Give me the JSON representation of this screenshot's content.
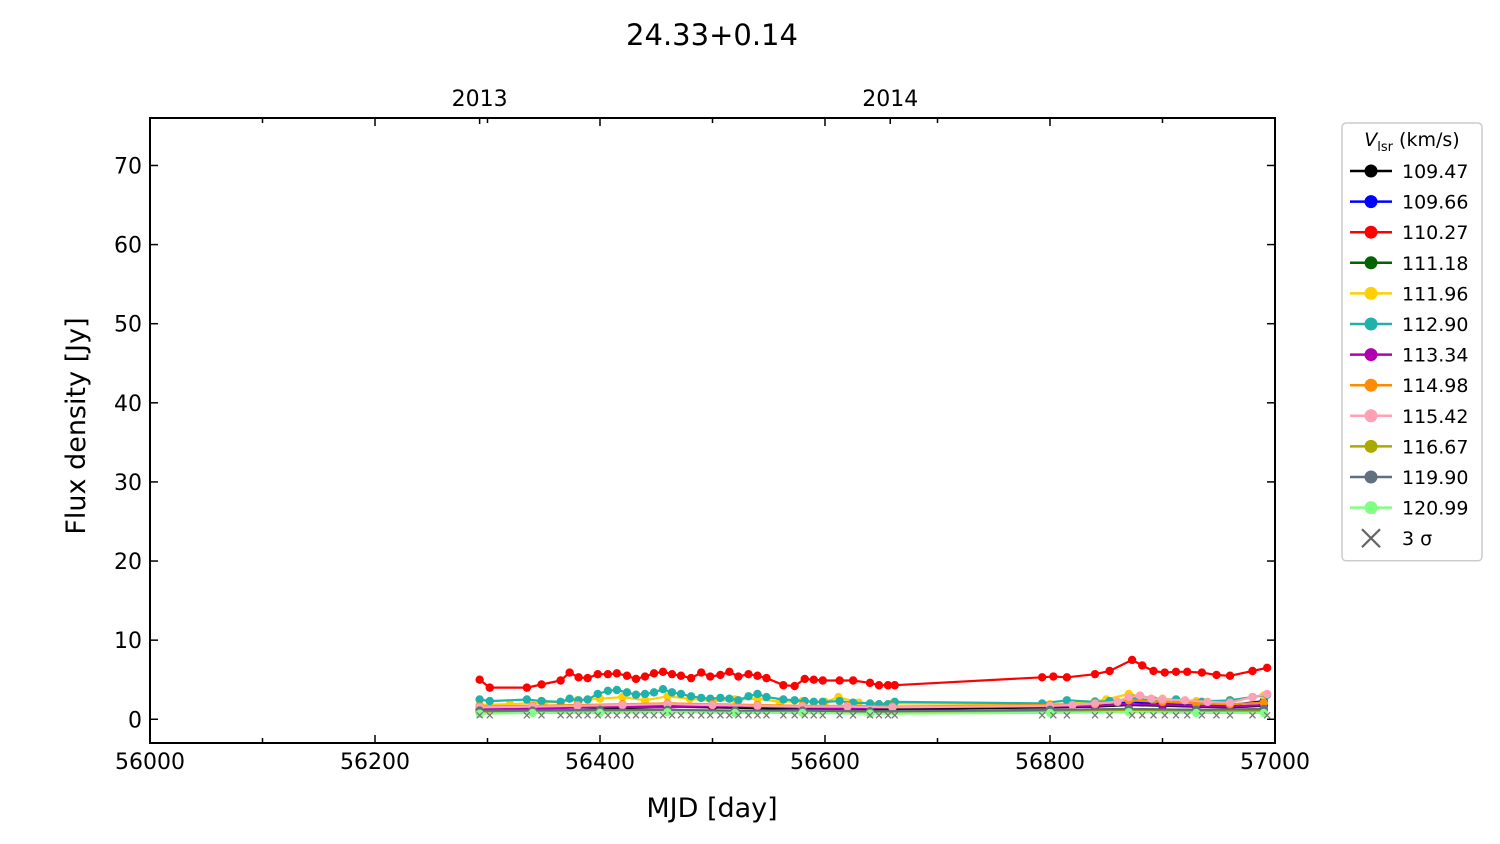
{
  "chart_data": {
    "type": "line",
    "title": "24.33+0.14",
    "xlabel": "MJD [day]",
    "ylabel": "Flux density [Jy]",
    "xlim": [
      56000,
      57000
    ],
    "ylim": [
      -3,
      76
    ],
    "x_ticks": [
      56000,
      56200,
      56400,
      56600,
      56800,
      57000
    ],
    "y_ticks": [
      0,
      10,
      20,
      30,
      40,
      50,
      60,
      70
    ],
    "top_axis": {
      "ticks": [
        {
          "label": "2013",
          "x": 56293
        },
        {
          "label": "2014",
          "x": 56658
        }
      ]
    },
    "grid": false,
    "legend": {
      "placement": "outside-right-top",
      "title_italic": "V",
      "title_sub": "lsr",
      "title_rest": " (km/s)",
      "sigma_label": "3 σ"
    },
    "series": [
      {
        "name": "109.47",
        "color": "#000000",
        "x": [
          56293,
          56300,
          56340,
          56380,
          56420,
          56460,
          56500,
          56540,
          56580,
          56620,
          56660,
          56800,
          56840,
          56870,
          56900,
          56930,
          56960,
          56990
        ],
        "y": [
          1.2,
          1.3,
          1.4,
          1.5,
          1.4,
          1.6,
          1.5,
          1.4,
          1.3,
          1.4,
          1.3,
          1.5,
          1.6,
          1.8,
          1.7,
          1.6,
          1.5,
          1.7
        ]
      },
      {
        "name": "109.66",
        "color": "#0000ff",
        "x": [
          56293,
          56300,
          56340,
          56380,
          56420,
          56460,
          56500,
          56540,
          56580,
          56620,
          56660,
          56800,
          56840,
          56870,
          56900,
          56930,
          56960,
          56990
        ],
        "y": [
          1.3,
          1.4,
          1.5,
          1.6,
          1.7,
          1.8,
          1.7,
          1.6,
          1.5,
          1.6,
          1.5,
          1.8,
          1.9,
          2.2,
          2.0,
          1.9,
          1.8,
          2.3
        ]
      },
      {
        "name": "110.27",
        "color": "#ff0000",
        "x": [
          56293,
          56302,
          56335,
          56348,
          56365,
          56373,
          56381,
          56389,
          56398,
          56407,
          56415,
          56424,
          56432,
          56440,
          56448,
          56456,
          56464,
          56472,
          56481,
          56490,
          56498,
          56507,
          56515,
          56523,
          56532,
          56540,
          56548,
          56563,
          56573,
          56582,
          56590,
          56598,
          56613,
          56625,
          56640,
          56648,
          56656,
          56662,
          56793,
          56803,
          56815,
          56840,
          56853,
          56873,
          56882,
          56892,
          56902,
          56912,
          56922,
          56935,
          56948,
          56960,
          56980,
          56993
        ],
        "y": [
          5.0,
          4.0,
          4.0,
          4.4,
          4.9,
          5.9,
          5.3,
          5.2,
          5.7,
          5.7,
          5.8,
          5.5,
          5.1,
          5.4,
          5.8,
          6.0,
          5.7,
          5.5,
          5.2,
          5.9,
          5.4,
          5.6,
          6.0,
          5.4,
          5.7,
          5.5,
          5.2,
          4.3,
          4.2,
          5.1,
          5.0,
          4.9,
          4.9,
          4.9,
          4.6,
          4.3,
          4.3,
          4.3,
          5.3,
          5.4,
          5.3,
          5.7,
          6.1,
          7.5,
          6.8,
          6.1,
          5.9,
          6.0,
          6.0,
          5.9,
          5.6,
          5.5,
          6.1,
          6.5
        ]
      },
      {
        "name": "111.18",
        "color": "#006400",
        "x": [
          56293,
          56340,
          56400,
          56460,
          56520,
          56580,
          56640,
          56800,
          56870,
          56930,
          56990
        ],
        "y": [
          1.0,
          1.1,
          1.2,
          1.1,
          1.0,
          1.2,
          1.1,
          1.1,
          1.3,
          1.2,
          1.2
        ]
      },
      {
        "name": "111.96",
        "color": "#ffd000",
        "x": [
          56293,
          56320,
          56350,
          56380,
          56400,
          56420,
          56440,
          56460,
          56480,
          56500,
          56520,
          56540,
          56560,
          56580,
          56600,
          56612,
          56630,
          56660,
          56800,
          56820,
          56840,
          56850,
          56870,
          56880,
          56900,
          56930,
          56960,
          56990
        ],
        "y": [
          1.8,
          1.9,
          2.1,
          2.4,
          2.6,
          2.8,
          2.4,
          2.9,
          2.6,
          2.3,
          2.5,
          2.6,
          2.2,
          2.3,
          2.2,
          2.8,
          2.1,
          2.0,
          1.9,
          2.0,
          2.3,
          2.5,
          3.2,
          2.9,
          2.6,
          2.3,
          2.4,
          3.0
        ]
      },
      {
        "name": "112.90",
        "color": "#20b2aa",
        "x": [
          56293,
          56302,
          56335,
          56348,
          56365,
          56373,
          56381,
          56389,
          56398,
          56407,
          56415,
          56424,
          56432,
          56440,
          56448,
          56456,
          56464,
          56472,
          56481,
          56490,
          56498,
          56507,
          56515,
          56523,
          56532,
          56540,
          56548,
          56563,
          56573,
          56582,
          56590,
          56598,
          56613,
          56625,
          56640,
          56648,
          56656,
          56662,
          56793,
          56815,
          56840,
          56853,
          56873,
          56892,
          56912,
          56935,
          56960,
          56980,
          56993
        ],
        "y": [
          2.5,
          2.3,
          2.5,
          2.3,
          2.2,
          2.6,
          2.4,
          2.5,
          3.2,
          3.6,
          3.7,
          3.4,
          3.1,
          3.2,
          3.4,
          3.8,
          3.4,
          3.2,
          2.9,
          2.7,
          2.6,
          2.7,
          2.6,
          2.4,
          2.9,
          3.2,
          2.8,
          2.5,
          2.4,
          2.3,
          2.2,
          2.2,
          2.3,
          2.1,
          2.0,
          1.9,
          1.9,
          2.2,
          2.0,
          2.4,
          2.2,
          2.3,
          2.6,
          2.4,
          2.5,
          2.2,
          2.4,
          2.8,
          3.1
        ]
      },
      {
        "name": "113.34",
        "color": "#b000b0",
        "x": [
          56293,
          56340,
          56380,
          56420,
          56460,
          56500,
          56540,
          56580,
          56620,
          56660,
          56800,
          56840,
          56870,
          56900,
          56930,
          56960,
          56990
        ],
        "y": [
          1.4,
          1.3,
          1.5,
          1.6,
          1.5,
          1.7,
          1.6,
          1.5,
          1.4,
          1.5,
          1.6,
          1.7,
          1.9,
          1.8,
          1.7,
          1.6,
          1.8
        ]
      },
      {
        "name": "114.98",
        "color": "#ff8c00",
        "x": [
          56293,
          56340,
          56380,
          56420,
          56460,
          56500,
          56540,
          56580,
          56620,
          56660,
          56800,
          56840,
          56870,
          56900,
          56930,
          56960,
          56990
        ],
        "y": [
          1.6,
          1.7,
          1.8,
          1.9,
          2.0,
          1.9,
          1.8,
          1.7,
          1.7,
          1.6,
          1.8,
          1.9,
          2.4,
          2.2,
          2.0,
          1.9,
          2.1
        ]
      },
      {
        "name": "115.42",
        "color": "#ffa0b4",
        "x": [
          56293,
          56340,
          56380,
          56420,
          56460,
          56500,
          56540,
          56580,
          56620,
          56660,
          56800,
          56820,
          56840,
          56860,
          56870,
          56880,
          56890,
          56900,
          56920,
          56940,
          56960,
          56980,
          56993
        ],
        "y": [
          1.5,
          1.6,
          1.7,
          1.8,
          1.9,
          1.8,
          1.7,
          1.6,
          1.6,
          1.5,
          1.7,
          1.8,
          2.0,
          2.2,
          2.8,
          3.0,
          2.6,
          2.5,
          2.4,
          2.2,
          2.1,
          2.8,
          3.2
        ]
      },
      {
        "name": "116.67",
        "color": "#aaaa00",
        "x": [
          56293,
          56340,
          56400,
          56460,
          56520,
          56580,
          56640,
          56800,
          56870,
          56930,
          56990
        ],
        "y": [
          0.9,
          1.0,
          1.0,
          1.1,
          1.0,
          1.0,
          0.9,
          1.0,
          1.1,
          1.0,
          1.0
        ]
      },
      {
        "name": "119.90",
        "color": "#607080",
        "x": [
          56293,
          56340,
          56400,
          56460,
          56520,
          56580,
          56640,
          56800,
          56870,
          56930,
          56990
        ],
        "y": [
          1.1,
          1.1,
          1.2,
          1.2,
          1.1,
          1.1,
          1.0,
          1.2,
          1.3,
          1.2,
          1.3
        ]
      },
      {
        "name": "120.99",
        "color": "#80ff80",
        "x": [
          56293,
          56340,
          56400,
          56460,
          56520,
          56580,
          56640,
          56800,
          56870,
          56930,
          56990
        ],
        "y": [
          0.7,
          0.8,
          0.8,
          0.9,
          0.8,
          0.8,
          0.7,
          0.8,
          0.9,
          0.8,
          0.8
        ]
      }
    ],
    "sigma_points": {
      "color": "#777777",
      "x": [
        56293,
        56302,
        56335,
        56348,
        56365,
        56373,
        56381,
        56389,
        56398,
        56407,
        56415,
        56424,
        56432,
        56440,
        56448,
        56456,
        56464,
        56472,
        56481,
        56490,
        56498,
        56507,
        56515,
        56523,
        56532,
        56540,
        56548,
        56563,
        56573,
        56582,
        56590,
        56598,
        56613,
        56625,
        56640,
        56648,
        56656,
        56662,
        56793,
        56803,
        56815,
        56840,
        56853,
        56873,
        56882,
        56892,
        56902,
        56912,
        56922,
        56935,
        56948,
        56960,
        56980,
        56993
      ],
      "y": [
        0.5,
        0.5,
        0.5,
        0.5,
        0.5,
        0.5,
        0.5,
        0.5,
        0.5,
        0.5,
        0.5,
        0.5,
        0.5,
        0.5,
        0.5,
        0.5,
        0.5,
        0.5,
        0.5,
        0.5,
        0.5,
        0.5,
        0.5,
        0.5,
        0.5,
        0.5,
        0.5,
        0.5,
        0.5,
        0.5,
        0.5,
        0.5,
        0.5,
        0.5,
        0.5,
        0.5,
        0.5,
        0.5,
        0.5,
        0.5,
        0.5,
        0.5,
        0.5,
        0.5,
        0.5,
        0.5,
        0.5,
        0.5,
        0.5,
        0.5,
        0.5,
        0.5,
        0.5,
        0.5
      ]
    }
  }
}
